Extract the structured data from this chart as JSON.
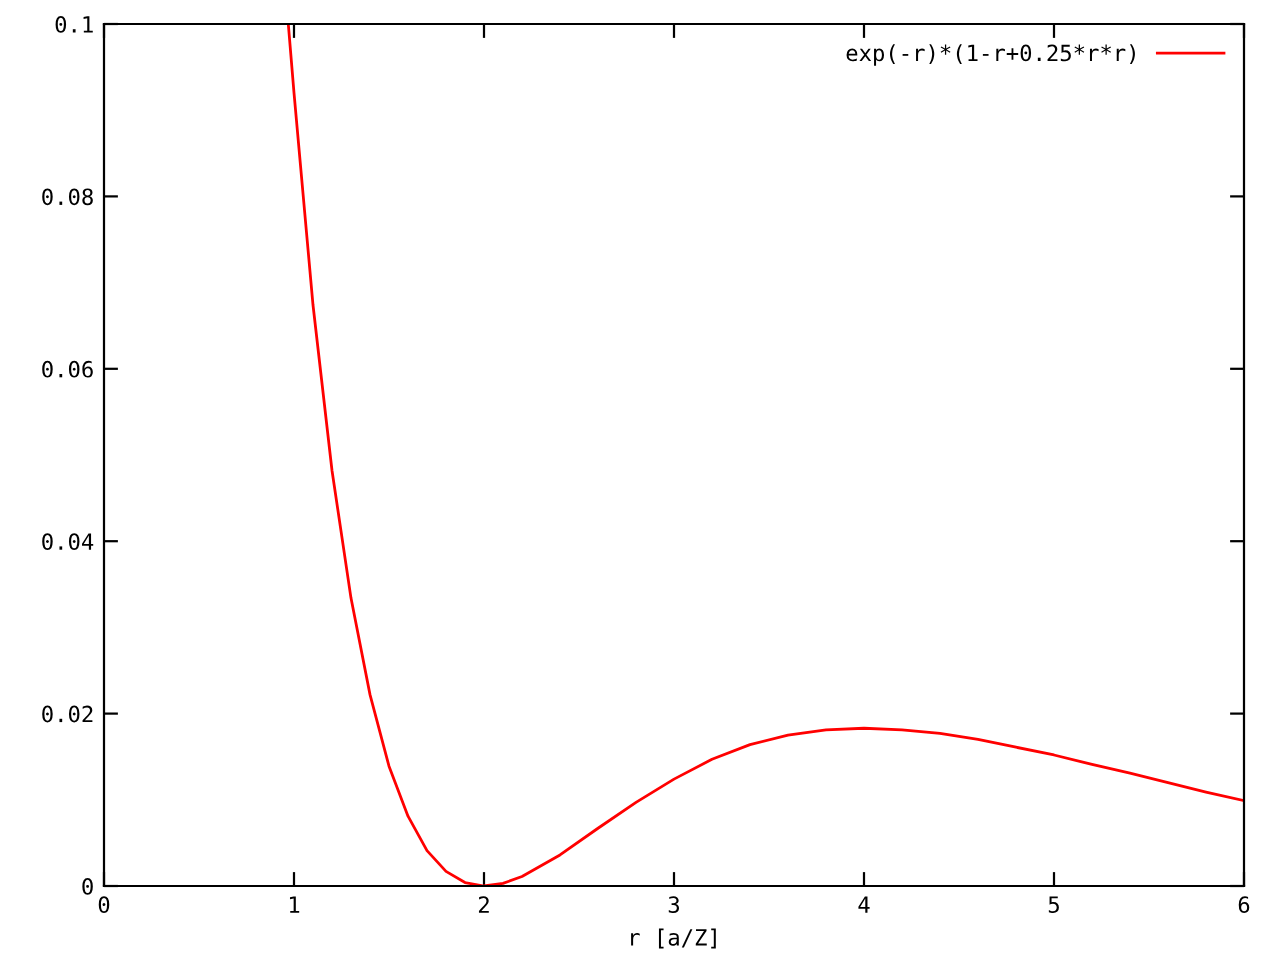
{
  "chart_data": {
    "type": "line",
    "xlabel": "r [a/Z]",
    "series": [
      {
        "name": "exp(-r)*(1-r+0.25*r*r)",
        "color": "#ff0000",
        "x": [
          0.97,
          1.0,
          1.1,
          1.2,
          1.3,
          1.4,
          1.5,
          1.6,
          1.7,
          1.8,
          1.9,
          2.0,
          2.1,
          2.2,
          2.4,
          2.6,
          2.8,
          3.0,
          3.2,
          3.4,
          3.6,
          3.8,
          4.0,
          4.2,
          4.4,
          4.6,
          4.8,
          5.0,
          5.2,
          5.4,
          5.6,
          5.8,
          6.0
        ],
        "values": [
          0.1,
          0.092,
          0.0674,
          0.0482,
          0.0334,
          0.0222,
          0.0139,
          0.0081,
          0.0041,
          0.0017,
          0.0004,
          0.0,
          0.0003,
          0.0011,
          0.0036,
          0.0067,
          0.0097,
          0.0124,
          0.0147,
          0.0164,
          0.0175,
          0.0181,
          0.0183,
          0.0181,
          0.0177,
          0.017,
          0.0161,
          0.0152,
          0.0141,
          0.0131,
          0.012,
          0.0109,
          0.0099
        ]
      }
    ],
    "xlim": [
      0,
      6
    ],
    "ylim": [
      0,
      0.1
    ],
    "xticks": [
      0,
      1,
      2,
      3,
      4,
      5,
      6
    ],
    "yticks": [
      0,
      0.02,
      0.04,
      0.06,
      0.08,
      0.1
    ],
    "grid": false,
    "legend": "top right",
    "marker": "none",
    "line_style": "solid"
  }
}
